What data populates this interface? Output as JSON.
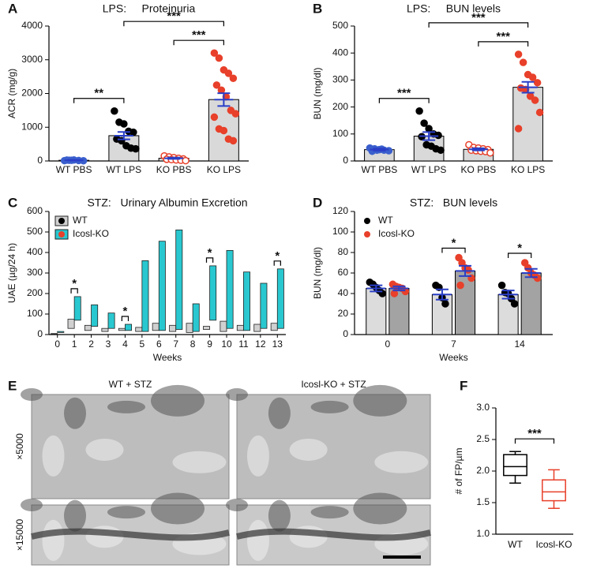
{
  "chart_data": [
    {
      "type": "bar",
      "panel": "A",
      "title": "LPS:     Proteinuria",
      "ylabel": "ACR (mg/g)",
      "categories": [
        "WT PBS",
        "WT LPS",
        "KO PBS",
        "KO LPS"
      ],
      "values": [
        20,
        750,
        80,
        1820
      ],
      "errors": [
        8,
        110,
        20,
        190
      ],
      "points": [
        [
          10,
          20,
          30,
          15,
          5,
          25,
          20
        ],
        [
          1480,
          1150,
          1100,
          880,
          850,
          650,
          600,
          450,
          380,
          360
        ],
        [
          150,
          120,
          100,
          80,
          60,
          50,
          40,
          30,
          20,
          10
        ],
        [
          3200,
          3050,
          2700,
          2600,
          2450,
          2250,
          2100,
          1900,
          1500,
          1400,
          1300,
          950,
          900,
          650,
          600
        ]
      ],
      "bar_color": "#d9d9d9",
      "error_color": "#2a3fc7",
      "point_colors": [
        "#3a5fcd",
        "#000000",
        "#e8402a",
        "#e8402a"
      ],
      "point_open": [
        false,
        false,
        true,
        false
      ],
      "ylim": [
        0,
        4000
      ],
      "yticks": [
        0,
        1000,
        2000,
        3000,
        4000
      ],
      "brackets": [
        {
          "from": 0,
          "to": 1,
          "label": "**"
        },
        {
          "from": 2,
          "to": 3,
          "label": "***"
        },
        {
          "from": 1,
          "to": 3,
          "label": "***"
        }
      ]
    },
    {
      "type": "bar",
      "panel": "B",
      "title": "LPS:     BUN levels",
      "ylabel": "BUN (mg/dl)",
      "categories": [
        "WT PBS",
        "WT LPS",
        "KO PBS",
        "KO LPS"
      ],
      "values": [
        42,
        92,
        43,
        273
      ],
      "errors": [
        4,
        15,
        4,
        20
      ],
      "points": [
        [
          48,
          45,
          42,
          40,
          38,
          36,
          40,
          44
        ],
        [
          185,
          140,
          120,
          100,
          95,
          90,
          60,
          55,
          45,
          40
        ],
        [
          60,
          50,
          48,
          45,
          42,
          40,
          38,
          36,
          35,
          30
        ],
        [
          395,
          365,
          320,
          310,
          290,
          270,
          265,
          240,
          225,
          180,
          120
        ]
      ],
      "bar_color": "#d9d9d9",
      "error_color": "#2a3fc7",
      "point_colors": [
        "#3a5fcd",
        "#000000",
        "#e8402a",
        "#e8402a"
      ],
      "point_open": [
        false,
        false,
        true,
        false
      ],
      "ylim": [
        0,
        500
      ],
      "yticks": [
        0,
        100,
        200,
        300,
        400,
        500
      ],
      "brackets": [
        {
          "from": 0,
          "to": 1,
          "label": "***"
        },
        {
          "from": 2,
          "to": 3,
          "label": "***"
        },
        {
          "from": 1,
          "to": 3,
          "label": "***"
        }
      ]
    },
    {
      "type": "range",
      "panel": "C",
      "title": "STZ:   Urinary Albumin Excretion",
      "ylabel": "UAE (µg/24 h)",
      "xlabel": "Weeks",
      "categories": [
        "0",
        "1",
        "2",
        "3",
        "4",
        "5",
        "6",
        "7",
        "8",
        "9",
        "10",
        "11",
        "12",
        "13"
      ],
      "series": [
        {
          "name": "WT",
          "color": "#d0d0d0",
          "point_color": "#000000",
          "low": [
            2,
            30,
            20,
            15,
            20,
            15,
            20,
            15,
            10,
            25,
            15,
            20,
            15,
            20
          ],
          "high": [
            5,
            75,
            45,
            30,
            30,
            35,
            55,
            45,
            55,
            40,
            65,
            45,
            50,
            55
          ]
        },
        {
          "name": "Icosl-KO",
          "color": "#29c8d0",
          "point_color": "#e8402a",
          "low": [
            10,
            70,
            40,
            30,
            20,
            15,
            20,
            25,
            15,
            70,
            30,
            20,
            30,
            30
          ],
          "high": [
            15,
            185,
            145,
            105,
            50,
            360,
            455,
            510,
            150,
            335,
            410,
            305,
            250,
            320
          ]
        }
      ],
      "legend": "upper left",
      "ylim": [
        0,
        600
      ],
      "yticks": [
        0,
        100,
        200,
        300,
        400,
        500,
        600
      ],
      "marks": [
        {
          "at": 1,
          "label": "*"
        },
        {
          "at": 4,
          "label": "*"
        },
        {
          "at": 9,
          "label": "*"
        },
        {
          "at": 13,
          "label": "*"
        }
      ]
    },
    {
      "type": "grouped_bar",
      "panel": "D",
      "title": "STZ:   BUN levels",
      "ylabel": "BUN (mg/dl)",
      "xlabel": "Weeks",
      "categories": [
        "0",
        "7",
        "14"
      ],
      "series": [
        {
          "name": "WT",
          "color": "#dcdcdc",
          "point_color": "#000000",
          "values": [
            45,
            39,
            39
          ],
          "errors": [
            3,
            5,
            4
          ],
          "points": [
            [
              51,
              49,
              46,
              43,
              40
            ],
            [
              48,
              46,
              36,
              30
            ],
            [
              48,
              41,
              40,
              35,
              30
            ]
          ]
        },
        {
          "name": "Icosl-KO",
          "color": "#a3a3a3",
          "point_color": "#e8402a",
          "values": [
            45,
            62,
            60
          ],
          "errors": [
            2,
            5,
            4
          ],
          "points": [
            [
              49,
              47,
              46,
              45,
              42,
              40
            ],
            [
              75,
              70,
              65,
              63,
              55,
              48
            ],
            [
              70,
              65,
              60,
              58,
              55
            ]
          ]
        }
      ],
      "error_color": "#2a3fc7",
      "legend": "upper left",
      "ylim": [
        0,
        120
      ],
      "yticks": [
        0,
        20,
        40,
        60,
        80,
        100,
        120
      ],
      "marks": [
        {
          "at": 1,
          "label": "*"
        },
        {
          "at": 2,
          "label": "*"
        }
      ]
    },
    {
      "type": "micrographs",
      "panel": "E",
      "columns": [
        "WT + STZ",
        "Icosl-KO + STZ"
      ],
      "rows": [
        "×5000",
        "×15000"
      ]
    },
    {
      "type": "box",
      "panel": "F",
      "ylabel": "# of FP/µm",
      "categories": [
        "WT",
        "Icosl-KO"
      ],
      "boxes": [
        {
          "min": 1.81,
          "q1": 1.93,
          "median": 2.07,
          "q3": 2.26,
          "max": 2.31
        },
        {
          "min": 1.41,
          "q1": 1.53,
          "median": 1.67,
          "q3": 1.86,
          "max": 2.02
        }
      ],
      "colors": [
        "#000000",
        "#e8402a"
      ],
      "ylim": [
        1,
        3
      ],
      "yticks": [
        {
          "value": 1,
          "label": "1.0"
        },
        {
          "value": 1.5,
          "label": "1.5"
        },
        {
          "value": 2,
          "label": "2.0"
        },
        {
          "value": 2.5,
          "label": "2.5"
        },
        {
          "value": 3,
          "label": "3.0"
        }
      ],
      "brackets": [
        {
          "from": 0,
          "to": 1,
          "label": "***"
        }
      ]
    }
  ]
}
